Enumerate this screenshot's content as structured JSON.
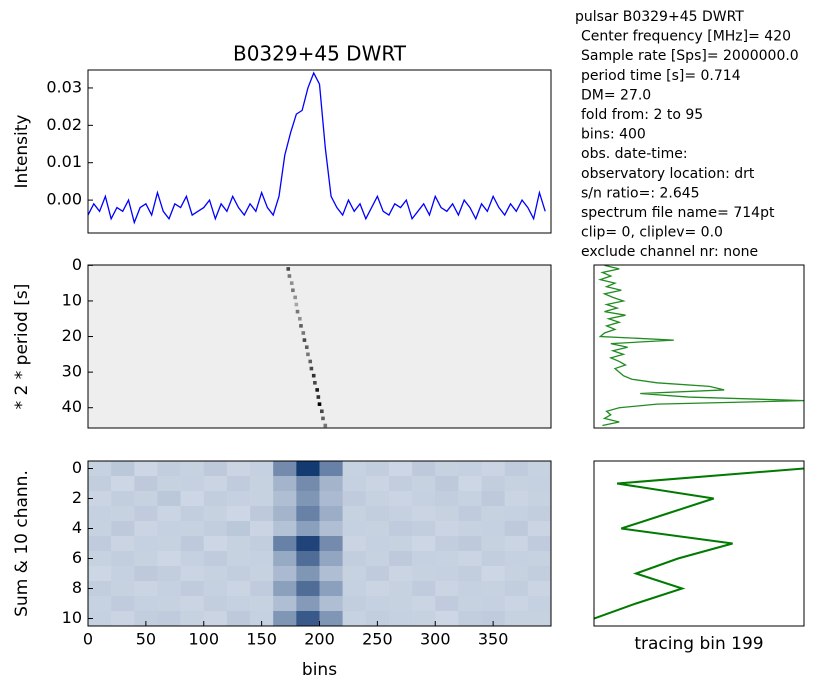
{
  "info_text": [
    "pulsar  B0329+45 DWRT",
    "Center frequency [MHz]= 420",
    "Sample rate [Sps]= 2000000.0",
    "period time [s]= 0.714",
    "DM= 27.0",
    "fold from: 2 to 95",
    "bins: 400",
    "obs. date-time:",
    "observatory location: drt",
    "s/n ratio=: 2.645",
    "spectrum file name= 714pt",
    "clip= 0, cliplev= 0.0",
    "exclude channel nr: none"
  ],
  "chart_data": [
    {
      "type": "line",
      "orientation": "horizontal",
      "title": "B0329+45 DWRT",
      "ylabel": "Intensity",
      "x": [
        0,
        5,
        10,
        15,
        20,
        25,
        30,
        35,
        40,
        45,
        50,
        55,
        60,
        65,
        70,
        75,
        80,
        85,
        90,
        95,
        100,
        105,
        110,
        115,
        120,
        125,
        130,
        135,
        140,
        145,
        150,
        155,
        160,
        165,
        170,
        175,
        180,
        185,
        190,
        195,
        200,
        205,
        210,
        215,
        220,
        225,
        230,
        235,
        240,
        245,
        250,
        255,
        260,
        265,
        270,
        275,
        280,
        285,
        290,
        295,
        300,
        305,
        310,
        315,
        320,
        325,
        330,
        335,
        340,
        345,
        350,
        355,
        360,
        365,
        370,
        375,
        380,
        385,
        390,
        395
      ],
      "series": [
        {
          "color": "#0000ff",
          "values": [
            -0.004,
            -0.001,
            -0.003,
            0.001,
            -0.005,
            -0.002,
            -0.003,
            0,
            -0.006,
            -0.002,
            -0.001,
            -0.004,
            0.002,
            -0.003,
            -0.005,
            -0.001,
            -0.002,
            0.001,
            -0.004,
            -0.003,
            -0.002,
            0,
            -0.005,
            -0.001,
            -0.003,
            0.001,
            -0.002,
            -0.004,
            -0.001,
            -0.003,
            0.002,
            -0.002,
            -0.004,
            0.001,
            0.012,
            0.018,
            0.023,
            0.024,
            0.03,
            0.034,
            0.031,
            0.014,
            0.001,
            -0.002,
            -0.004,
            0,
            -0.003,
            -0.001,
            -0.005,
            -0.002,
            0.001,
            -0.003,
            -0.004,
            -0.001,
            -0.002,
            0,
            -0.005,
            -0.003,
            -0.001,
            -0.004,
            0.001,
            -0.002,
            -0.003,
            -0.001,
            -0.004,
            0,
            -0.002,
            -0.005,
            -0.001,
            -0.003,
            0.001,
            -0.002,
            -0.004,
            -0.001,
            -0.003,
            0,
            -0.002,
            -0.005,
            0.002,
            -0.003
          ]
        }
      ],
      "xlim": [
        0,
        400
      ],
      "ylim": [
        -0.0088,
        0.0348
      ],
      "yticks": [
        {
          "value": 0,
          "label": "0.00"
        },
        {
          "value": 0.01,
          "label": "0.01"
        },
        {
          "value": 0.02,
          "label": "0.02"
        },
        {
          "value": 0.03,
          "label": "0.03"
        }
      ]
    },
    {
      "type": "scatter",
      "ylabel": "* 2 * period [s]",
      "background": "#eeeeee",
      "x": [
        173,
        174,
        176,
        177,
        179,
        180,
        181,
        183,
        184,
        186,
        187,
        189,
        190,
        192,
        193,
        195,
        196,
        198,
        199,
        200,
        202,
        203,
        205
      ],
      "series": [
        {
          "color": "#000000",
          "values": [
            1,
            3,
            5,
            7,
            9,
            11,
            13,
            15,
            17,
            19,
            21,
            23,
            25,
            27,
            29,
            31,
            33,
            35,
            37,
            39,
            41,
            43,
            45
          ],
          "intensity": [
            0.7,
            0.5,
            0.4,
            0.5,
            0.4,
            0.3,
            0.5,
            0.4,
            0.6,
            0.5,
            0.7,
            0.6,
            0.5,
            0.6,
            0.7,
            0.8,
            0.7,
            0.9,
            0.8,
            1.0,
            0.7,
            0.6,
            0.5
          ]
        }
      ],
      "xlim": [
        0,
        400
      ],
      "ylim": [
        45.7,
        -0.1
      ],
      "yticks": [
        0,
        10,
        20,
        30,
        40
      ]
    },
    {
      "type": "line",
      "orientation": "vertical",
      "y": [
        0,
        1,
        2,
        3,
        4,
        5,
        6,
        7,
        8,
        9,
        10,
        11,
        12,
        13,
        14,
        15,
        16,
        17,
        18,
        19,
        20,
        21,
        22,
        23,
        24,
        25,
        26,
        27,
        28,
        29,
        30,
        31,
        32,
        33,
        34,
        35,
        36,
        37,
        38,
        39,
        40,
        41,
        42,
        43,
        44,
        45
      ],
      "series": [
        {
          "color": "#228b22",
          "values": [
            0.05,
            0.12,
            0.04,
            0.08,
            0.03,
            0.1,
            0.06,
            0.13,
            0.05,
            0.09,
            0.14,
            0.06,
            0.11,
            0.05,
            0.15,
            0.07,
            0.12,
            0.06,
            0.1,
            0.05,
            0.03,
            0.38,
            0.08,
            0.16,
            0.09,
            0.14,
            0.08,
            0.12,
            0.15,
            0.1,
            0.12,
            0.14,
            0.18,
            0.3,
            0.55,
            0.62,
            0.22,
            0.45,
            1.0,
            0.3,
            0.12,
            0.06,
            0.08,
            0.05,
            0.12,
            0.04
          ]
        }
      ],
      "xlim": [
        0,
        1
      ],
      "ylim": [
        45.7,
        -0.1
      ]
    },
    {
      "type": "heatmap",
      "ylabel": "Sum & 10 chann.",
      "xlabel": "bins",
      "color_low": "#f7fbff",
      "color_high": "#08306b",
      "vlim": [
        0,
        1
      ],
      "bins": [
        0,
        20,
        40,
        60,
        80,
        100,
        120,
        140,
        160,
        180,
        200,
        220,
        240,
        260,
        280,
        300,
        320,
        340,
        360,
        380,
        400
      ],
      "y": [
        0,
        1,
        2,
        3,
        4,
        5,
        6,
        7,
        8,
        9,
        10
      ],
      "values": [
        [
          0.2,
          0.25,
          0.18,
          0.22,
          0.2,
          0.24,
          0.19,
          0.21,
          0.55,
          0.95,
          0.6,
          0.2,
          0.22,
          0.18,
          0.24,
          0.2,
          0.21,
          0.19,
          0.23,
          0.2
        ],
        [
          0.22,
          0.18,
          0.24,
          0.2,
          0.21,
          0.19,
          0.23,
          0.2,
          0.35,
          0.55,
          0.35,
          0.21,
          0.19,
          0.22,
          0.2,
          0.24,
          0.18,
          0.22,
          0.2,
          0.21
        ],
        [
          0.19,
          0.22,
          0.2,
          0.25,
          0.18,
          0.22,
          0.21,
          0.2,
          0.3,
          0.5,
          0.32,
          0.23,
          0.2,
          0.19,
          0.21,
          0.22,
          0.2,
          0.24,
          0.19,
          0.2
        ],
        [
          0.21,
          0.2,
          0.23,
          0.19,
          0.22,
          0.2,
          0.18,
          0.24,
          0.35,
          0.6,
          0.38,
          0.2,
          0.22,
          0.21,
          0.19,
          0.2,
          0.23,
          0.2,
          0.21,
          0.22
        ],
        [
          0.2,
          0.24,
          0.19,
          0.21,
          0.2,
          0.22,
          0.25,
          0.19,
          0.28,
          0.45,
          0.3,
          0.21,
          0.2,
          0.23,
          0.22,
          0.19,
          0.2,
          0.21,
          0.24,
          0.19
        ],
        [
          0.23,
          0.19,
          0.21,
          0.2,
          0.24,
          0.18,
          0.2,
          0.22,
          0.6,
          0.9,
          0.55,
          0.19,
          0.21,
          0.2,
          0.18,
          0.22,
          0.24,
          0.2,
          0.19,
          0.23
        ],
        [
          0.2,
          0.22,
          0.2,
          0.18,
          0.21,
          0.23,
          0.2,
          0.21,
          0.4,
          0.7,
          0.42,
          0.22,
          0.2,
          0.24,
          0.21,
          0.2,
          0.19,
          0.22,
          0.21,
          0.2
        ],
        [
          0.18,
          0.21,
          0.24,
          0.22,
          0.19,
          0.2,
          0.22,
          0.2,
          0.32,
          0.5,
          0.3,
          0.2,
          0.23,
          0.19,
          0.2,
          0.21,
          0.22,
          0.18,
          0.2,
          0.22
        ],
        [
          0.22,
          0.2,
          0.19,
          0.21,
          0.23,
          0.21,
          0.19,
          0.23,
          0.45,
          0.7,
          0.45,
          0.21,
          0.19,
          0.2,
          0.23,
          0.19,
          0.21,
          0.2,
          0.22,
          0.19
        ],
        [
          0.2,
          0.23,
          0.21,
          0.2,
          0.19,
          0.22,
          0.21,
          0.2,
          0.3,
          0.48,
          0.3,
          0.22,
          0.21,
          0.2,
          0.19,
          0.23,
          0.2,
          0.21,
          0.19,
          0.21
        ],
        [
          0.21,
          0.19,
          0.22,
          0.23,
          0.2,
          0.19,
          0.24,
          0.21,
          0.5,
          0.8,
          0.5,
          0.2,
          0.22,
          0.21,
          0.2,
          0.18,
          0.22,
          0.23,
          0.2,
          0.2
        ]
      ],
      "xlim": [
        0,
        400
      ],
      "ylim": [
        10.5,
        -0.5
      ],
      "xticks": [
        0,
        50,
        100,
        150,
        200,
        250,
        300,
        350
      ],
      "yticks": [
        0,
        2,
        4,
        6,
        8,
        10
      ]
    },
    {
      "type": "line",
      "orientation": "vertical",
      "xlabel": "tracing bin 199",
      "y": [
        0,
        1,
        2,
        3,
        4,
        5,
        6,
        7,
        8,
        9,
        10
      ],
      "series": [
        {
          "color": "#007a00",
          "values": [
            1.0,
            0.11,
            0.57,
            0.35,
            0.13,
            0.66,
            0.4,
            0.2,
            0.42,
            0.2,
            0.0
          ]
        }
      ],
      "xlim": [
        0,
        1
      ],
      "ylim": [
        10.5,
        -0.5
      ]
    }
  ]
}
